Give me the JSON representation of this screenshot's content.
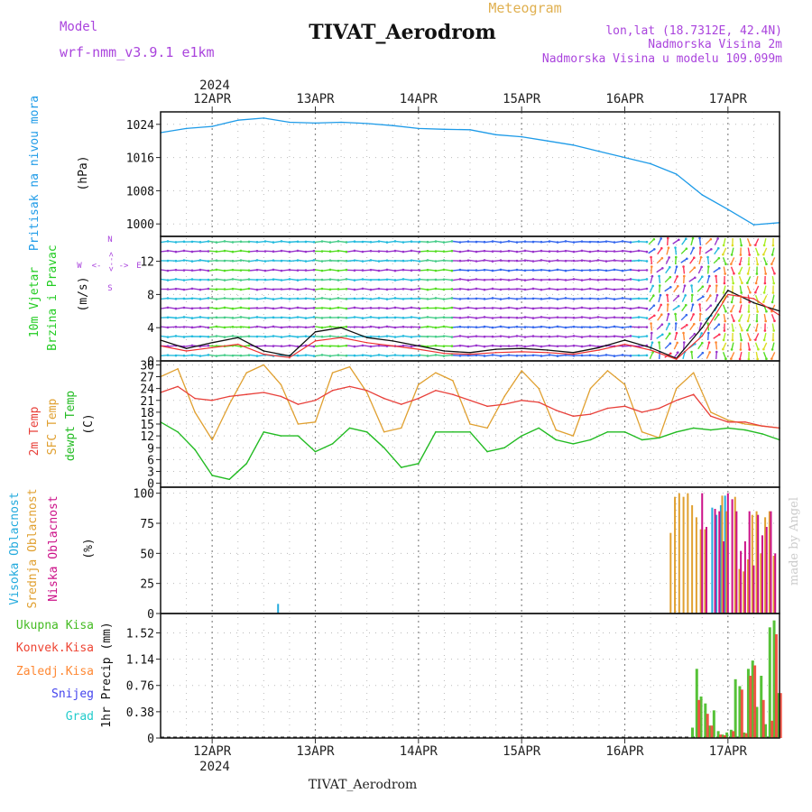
{
  "header": {
    "title": "TIVAT_Aerodrom",
    "subtitle": "Meteogram",
    "model_label": "Model",
    "model_name": "wrf-nmm_v3.9.1 e1km",
    "coords": "lon,lat (18.7312E, 42.4N)",
    "elevation": "Nadmorska Visina 2m",
    "model_elevation": "Nadmorska Visina u modelu 109.099m",
    "year_top": "2024",
    "year_bottom": "2024",
    "footer": "TIVAT_Aerodrom",
    "credit": "made by Angel"
  },
  "colors": {
    "pressure": "#1e9be8",
    "wind_label": "#22cc22",
    "temp2m": "#e8403a",
    "sfc": "#e0a030",
    "dewpt": "#22bb22",
    "high_cloud": "#22aadd",
    "mid_cloud": "#e0a030",
    "low_cloud": "#cc1188",
    "purple_text": "#aa44dd",
    "total_precip": "#44bb22",
    "conv_precip": "#ee4433",
    "frozen": "#ff8833",
    "snow": "#4444ee",
    "hail": "#22cccc"
  },
  "chart_data": [
    {
      "type": "line",
      "panel": "pressure",
      "ylabel_lines": [
        "Pritisak na nivou mora",
        "(hPa)"
      ],
      "ylim": [
        997,
        1027
      ],
      "yticks": [
        "1000",
        "1008",
        "1016",
        "1024"
      ],
      "xlim": [
        0,
        144
      ],
      "x_tick_labels": [
        "12APR",
        "13APR",
        "14APR",
        "15APR",
        "16APR",
        "17APR"
      ],
      "x": [
        0,
        6,
        12,
        18,
        24,
        30,
        36,
        42,
        48,
        54,
        60,
        66,
        72,
        78,
        84,
        90,
        96,
        102,
        108,
        114,
        120,
        126,
        132,
        138,
        144
      ],
      "series": [
        {
          "name": "",
          "values": [
            1022,
            1023,
            1023.5,
            1025,
            1025.5,
            1024.5,
            1024.3,
            1024.5,
            1024.2,
            1023.7,
            1023,
            1022.8,
            1022.7,
            1021.5,
            1021,
            1020,
            1019,
            1017.5,
            1016,
            1014.5,
            1012,
            1007,
            1003.5,
            999.8,
            1000.3
          ]
        }
      ]
    },
    {
      "type": "line",
      "panel": "wind",
      "ylabel_lines": [
        "10m Vjetar",
        "Brzina i Pravac",
        "(m/s)"
      ],
      "compass": [
        "N",
        "W",
        "E",
        "S"
      ],
      "ylim": [
        0,
        15
      ],
      "yticks": [
        "0",
        "4",
        "8",
        "12"
      ],
      "xlim": [
        0,
        144
      ],
      "x": [
        0,
        6,
        12,
        18,
        24,
        30,
        36,
        42,
        48,
        54,
        60,
        66,
        72,
        78,
        84,
        90,
        96,
        102,
        108,
        114,
        120,
        126,
        132,
        138,
        144
      ],
      "series": [
        {
          "name": "",
          "values": [
            2.5,
            1.5,
            2.2,
            2.8,
            1.2,
            0.6,
            3.5,
            4,
            2.8,
            2.4,
            1.8,
            1.2,
            1,
            1.4,
            1.5,
            1.3,
            1,
            1.6,
            2.5,
            1.6,
            0.3,
            4,
            8.5,
            7,
            6
          ]
        },
        {
          "name": "",
          "values": [
            1.8,
            1.2,
            1.6,
            2,
            0.8,
            0.4,
            2.4,
            2.8,
            2.2,
            1.8,
            1.4,
            0.9,
            0.8,
            1,
            1.1,
            1,
            0.8,
            1.3,
            2,
            1.3,
            0.2,
            3,
            8,
            7.5,
            5.5
          ]
        }
      ]
    },
    {
      "type": "line",
      "panel": "temperature",
      "ylabel_lines": [
        "2m Temp",
        "SFC Temp",
        "dewpt Temp",
        "(C)"
      ],
      "ylim": [
        -1,
        31
      ],
      "yticks": [
        "0",
        "3",
        "6",
        "9",
        "12",
        "15",
        "18",
        "21",
        "24",
        "27",
        "30"
      ],
      "xlim": [
        0,
        144
      ],
      "x": [
        0,
        4,
        8,
        12,
        16,
        20,
        24,
        28,
        32,
        36,
        40,
        44,
        48,
        52,
        56,
        60,
        64,
        68,
        72,
        76,
        80,
        84,
        88,
        92,
        96,
        100,
        104,
        108,
        112,
        116,
        120,
        124,
        128,
        132,
        136,
        140,
        144
      ],
      "series": [
        {
          "name": "",
          "values": [
            23,
            24.5,
            21.5,
            21,
            22,
            22.5,
            23,
            22,
            20,
            21,
            23.5,
            24.5,
            23.5,
            21.5,
            20,
            21.5,
            23.5,
            22.5,
            21,
            19.5,
            20,
            21,
            20.5,
            18.5,
            17,
            17.5,
            19,
            19.5,
            18,
            19,
            21,
            22.5,
            17,
            15.5,
            15.5,
            14.5,
            14
          ]
        },
        {
          "name": "",
          "values": [
            27,
            29,
            18,
            11,
            20,
            28,
            30,
            25,
            15,
            15.5,
            28,
            29.5,
            23,
            13,
            14,
            25,
            28,
            26,
            15,
            14,
            22,
            28.5,
            24,
            13.5,
            12,
            24,
            28.5,
            25,
            13,
            11.5,
            24,
            28,
            18,
            16,
            15,
            14.5,
            14
          ]
        },
        {
          "name": "",
          "values": [
            15.5,
            13,
            8.5,
            2,
            1,
            5,
            13,
            12,
            12,
            8,
            10,
            14,
            13,
            9,
            4,
            5,
            13,
            13,
            13,
            8,
            9,
            12,
            14,
            11,
            10,
            11,
            13,
            13,
            11,
            11.5,
            13,
            14,
            13.5,
            14,
            13.5,
            12.5,
            11
          ]
        }
      ]
    },
    {
      "type": "bar",
      "panel": "cloud",
      "ylabel_lines": [
        "Visoka Oblacnost",
        "Srednja Oblacnost",
        "Niska Oblacnost",
        "(%)"
      ],
      "ylim": [
        0,
        105
      ],
      "yticks": [
        "0",
        "25",
        "50",
        "75",
        "100"
      ],
      "xlim": [
        0,
        144
      ],
      "series": [
        {
          "name": "high",
          "x": [
            27,
            128,
            129,
            130,
            131
          ],
          "values": [
            8,
            88,
            82,
            90,
            98
          ]
        },
        {
          "name": "mid",
          "x": [
            119,
            120,
            121,
            122,
            123,
            124,
            125,
            126,
            127,
            131,
            132,
            134,
            135,
            136,
            137,
            138,
            139,
            140,
            141,
            142,
            143
          ],
          "values": [
            67,
            97,
            100,
            97,
            100,
            90,
            80,
            70,
            70,
            98,
            85,
            97,
            37,
            35,
            45,
            82,
            85,
            50,
            80,
            85,
            48
          ]
        },
        {
          "name": "low",
          "x": [
            126,
            127,
            129,
            130,
            131,
            132,
            133,
            134,
            135,
            136,
            137,
            138,
            139,
            140,
            141,
            142,
            143
          ],
          "values": [
            100,
            72,
            87,
            85,
            60,
            100,
            95,
            85,
            52,
            60,
            85,
            40,
            82,
            65,
            72,
            85,
            50
          ]
        }
      ]
    },
    {
      "type": "bar",
      "panel": "precip",
      "ylabel_lines": [
        "1hr Precip (mm)"
      ],
      "legend": [
        "Ukupna Kisa",
        "Konvek.Kisa",
        "Zaledj.Kisa",
        "Snijeg",
        "Grad"
      ],
      "ylim": [
        0,
        1.8
      ],
      "yticks": [
        "0",
        "0.38",
        "0.76",
        "1.14",
        "1.52"
      ],
      "xlim": [
        0,
        144
      ],
      "series": [
        {
          "name": "total",
          "x": [
            124,
            125,
            126,
            127,
            128,
            129,
            130,
            131,
            132,
            133,
            134,
            135,
            136,
            137,
            138,
            139,
            140,
            141,
            142,
            143,
            144
          ],
          "values": [
            0.15,
            1.0,
            0.6,
            0.5,
            0.18,
            0.4,
            0.1,
            0.05,
            0.08,
            0.12,
            0.85,
            0.75,
            0.08,
            1.0,
            1.12,
            0.45,
            0.9,
            0.2,
            1.6,
            1.7,
            0.65
          ]
        },
        {
          "name": "convective",
          "x": [
            125,
            127,
            128,
            130,
            131,
            133,
            135,
            136,
            137,
            138,
            140,
            142,
            143,
            144
          ],
          "values": [
            0.55,
            0.35,
            0.18,
            0.05,
            0.04,
            0.1,
            0.7,
            0.07,
            0.9,
            1.05,
            0.55,
            0.25,
            1.5,
            0.65
          ]
        }
      ]
    }
  ]
}
